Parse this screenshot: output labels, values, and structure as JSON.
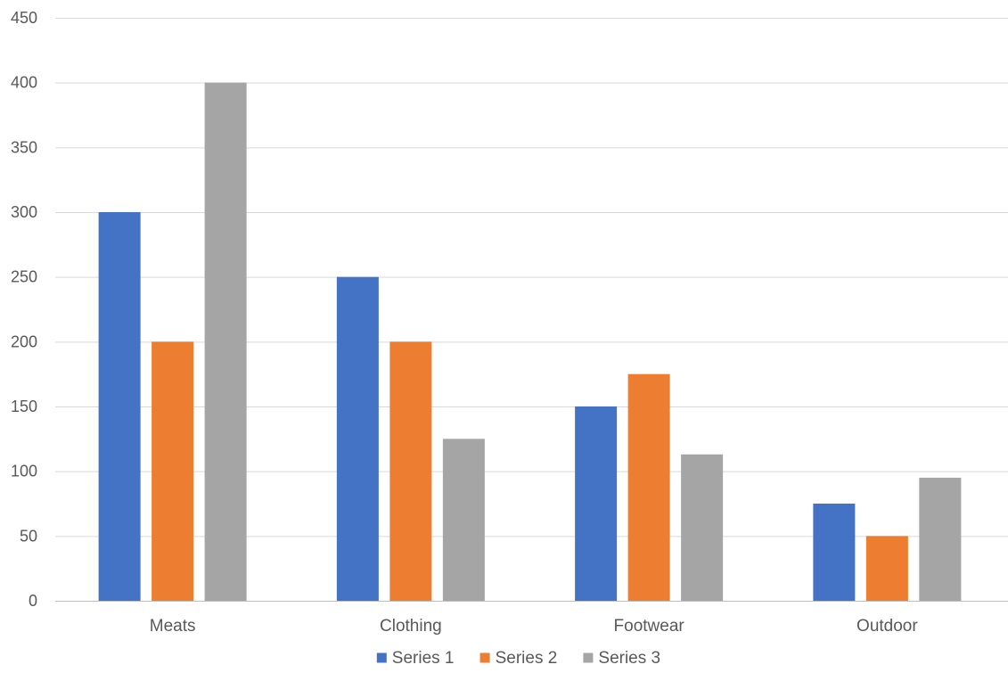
{
  "chart_data": {
    "type": "bar",
    "title": "",
    "xlabel": "",
    "ylabel": "",
    "categories": [
      "Meats",
      "Clothing",
      "Footwear",
      "Outdoor"
    ],
    "series": [
      {
        "name": "Series 1",
        "color": "#4472C4",
        "values": [
          300,
          250,
          150,
          75
        ]
      },
      {
        "name": "Series 2",
        "color": "#ED7D31",
        "values": [
          200,
          200,
          175,
          50
        ]
      },
      {
        "name": "Series 3",
        "color": "#A5A5A5",
        "values": [
          400,
          125,
          113,
          95
        ]
      }
    ],
    "ylim": [
      0,
      450
    ],
    "yticks": [
      "0",
      "50",
      "100",
      "150",
      "200",
      "250",
      "300",
      "350",
      "400",
      "450"
    ],
    "grid": true,
    "legend_position": "bottom"
  }
}
